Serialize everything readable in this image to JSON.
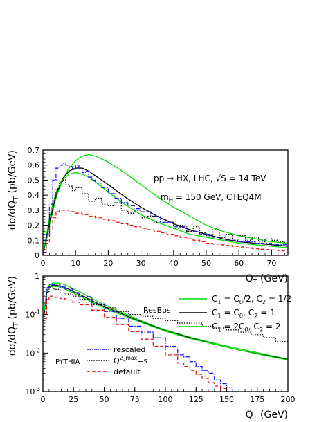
{
  "chart_data": [
    {
      "type": "line",
      "xlim": [
        0,
        75
      ],
      "ylim": [
        0,
        0.7
      ],
      "xticks": [
        0,
        10,
        20,
        30,
        40,
        50,
        60,
        70
      ],
      "yticks": [
        0,
        0.1,
        0.2,
        0.3,
        0.4,
        0.5,
        0.6,
        0.7
      ],
      "xtick_labels": [
        "0",
        "10",
        "20",
        "30",
        "40",
        "50",
        "60",
        "70"
      ],
      "ytick_labels": [
        "0",
        "0.1",
        "0.2",
        "0.3",
        "0.4",
        "0.5",
        "0.6",
        "0.7"
      ],
      "xlabel": "Q_T (GeV)",
      "ylabel": "dσ/dQ_T (pb/GeV)",
      "annotations": [
        "pp → HX, LHC, √S = 14 TeV",
        "m_H = 150 GeV, CTEQ4M"
      ],
      "series": [
        {
          "color": "#00dd00",
          "style": "solid",
          "x": [
            0,
            2,
            4,
            6,
            8,
            10,
            12,
            14,
            16,
            20,
            25,
            30,
            35,
            40,
            45,
            50,
            55,
            60,
            65,
            70,
            75
          ],
          "y": [
            0,
            0.2,
            0.38,
            0.5,
            0.58,
            0.63,
            0.66,
            0.67,
            0.66,
            0.62,
            0.55,
            0.47,
            0.39,
            0.32,
            0.26,
            0.2,
            0.16,
            0.13,
            0.11,
            0.09,
            0.08
          ]
        },
        {
          "color": "#000000",
          "style": "solid",
          "x": [
            0,
            2,
            4,
            6,
            8,
            10,
            12,
            14,
            16,
            20,
            25,
            30,
            35,
            40,
            45,
            50,
            55,
            60,
            65,
            70,
            75
          ],
          "y": [
            0,
            0.22,
            0.4,
            0.51,
            0.56,
            0.58,
            0.58,
            0.56,
            0.53,
            0.47,
            0.39,
            0.32,
            0.26,
            0.21,
            0.17,
            0.14,
            0.11,
            0.09,
            0.08,
            0.07,
            0.06
          ]
        },
        {
          "color": "#00dd00",
          "style": "solid",
          "x": [
            0,
            2,
            4,
            6,
            8,
            10,
            12,
            14,
            16,
            20,
            25,
            30,
            35,
            40,
            45,
            50,
            55,
            60,
            65,
            70,
            75
          ],
          "y": [
            0,
            0.25,
            0.42,
            0.5,
            0.54,
            0.55,
            0.54,
            0.52,
            0.49,
            0.42,
            0.34,
            0.27,
            0.22,
            0.18,
            0.14,
            0.12,
            0.1,
            0.08,
            0.07,
            0.06,
            0.05
          ]
        },
        {
          "color": "#1a1aee",
          "style": "dashdot",
          "x": [
            0,
            1,
            2,
            3,
            4,
            5,
            6,
            7,
            8,
            9,
            10,
            11,
            12,
            13,
            14,
            15,
            16,
            18,
            20,
            22,
            24,
            26,
            28,
            30,
            33,
            36,
            40,
            44,
            48,
            52,
            56,
            60,
            65,
            70,
            75
          ],
          "y": [
            0.02,
            0.14,
            0.34,
            0.5,
            0.58,
            0.6,
            0.61,
            0.6,
            0.59,
            0.57,
            0.6,
            0.58,
            0.55,
            0.56,
            0.52,
            0.5,
            0.48,
            0.45,
            0.41,
            0.38,
            0.35,
            0.33,
            0.31,
            0.29,
            0.26,
            0.22,
            0.19,
            0.16,
            0.14,
            0.12,
            0.1,
            0.09,
            0.08,
            0.07,
            0.06
          ]
        },
        {
          "color": "#000000",
          "style": "dotted",
          "x": [
            0,
            1,
            2,
            3,
            4,
            5,
            6,
            7,
            8,
            9,
            10,
            12,
            14,
            16,
            18,
            20,
            22,
            24,
            26,
            28,
            30,
            32,
            34,
            36,
            38,
            40,
            42,
            44,
            46,
            48,
            50,
            52,
            54,
            56,
            58,
            60,
            62,
            64,
            66,
            68,
            70,
            72,
            74
          ],
          "y": [
            0.02,
            0.12,
            0.27,
            0.38,
            0.44,
            0.49,
            0.5,
            0.47,
            0.46,
            0.43,
            0.45,
            0.41,
            0.36,
            0.38,
            0.34,
            0.33,
            0.35,
            0.3,
            0.28,
            0.3,
            0.25,
            0.26,
            0.22,
            0.24,
            0.22,
            0.18,
            0.2,
            0.16,
            0.19,
            0.15,
            0.13,
            0.17,
            0.12,
            0.14,
            0.1,
            0.13,
            0.1,
            0.12,
            0.09,
            0.11,
            0.1,
            0.09,
            0.08
          ]
        },
        {
          "color": "#ee1111",
          "style": "dashed",
          "x": [
            0,
            1,
            2,
            3,
            4,
            5,
            6,
            7,
            8,
            9,
            10,
            12,
            14,
            16,
            18,
            20,
            22,
            24,
            26,
            28,
            30,
            32,
            34,
            36,
            38,
            40,
            42,
            44,
            46,
            48,
            50,
            52,
            54,
            56,
            58,
            60,
            62,
            64,
            66,
            68,
            70,
            72,
            74
          ],
          "y": [
            0.02,
            0.08,
            0.18,
            0.25,
            0.29,
            0.3,
            0.3,
            0.3,
            0.29,
            0.29,
            0.28,
            0.27,
            0.26,
            0.25,
            0.24,
            0.23,
            0.22,
            0.21,
            0.2,
            0.19,
            0.18,
            0.17,
            0.16,
            0.15,
            0.14,
            0.13,
            0.12,
            0.11,
            0.1,
            0.09,
            0.08,
            0.075,
            0.07,
            0.065,
            0.06,
            0.055,
            0.05,
            0.045,
            0.04,
            0.038,
            0.035,
            0.03,
            0.028
          ]
        }
      ]
    },
    {
      "type": "line",
      "yscale": "log",
      "xlim": [
        0,
        200
      ],
      "ylim": [
        0.001,
        1
      ],
      "xticks": [
        0,
        25,
        50,
        75,
        100,
        125,
        150,
        175,
        200
      ],
      "xtick_labels": [
        "0",
        "25",
        "50",
        "75",
        "100",
        "125",
        "150",
        "175",
        "200"
      ],
      "yticks": [
        0.001,
        0.01,
        0.1,
        1
      ],
      "ytick_labels": [
        "10^-3",
        "10^-2",
        "10^-1",
        "1"
      ],
      "xlabel": "Q_T (GeV)",
      "ylabel": "dσ/dQ_T (pb/GeV)",
      "legend_resbos": {
        "title": "ResBos",
        "entries": [
          {
            "label": "C_1 = C_0/2, C_2 = 1/2",
            "color": "#00dd00",
            "style": "solid"
          },
          {
            "label": "C_1 = C_0,    C_2 = 1",
            "color": "#000000",
            "style": "solid"
          },
          {
            "label": "C_1 = 2C_0,   C_2 = 2",
            "color": "#00dd00",
            "style": "solid"
          }
        ]
      },
      "legend_pythia": {
        "title": "PYTHIA",
        "entries": [
          {
            "label": "rescaled",
            "color": "#1a1aee",
            "style": "dashdot"
          },
          {
            "label": "Q^2_max=s",
            "color": "#000000",
            "style": "dotted"
          },
          {
            "label": "default",
            "color": "#ee1111",
            "style": "dashed"
          }
        ]
      },
      "series": [
        {
          "color": "#00dd00",
          "style": "solid",
          "x": [
            1,
            3,
            5,
            8,
            12,
            16,
            20,
            30,
            40,
            50,
            60,
            70,
            80,
            90,
            100,
            120,
            140,
            160,
            180,
            200
          ],
          "y": [
            0.1,
            0.38,
            0.58,
            0.66,
            0.66,
            0.62,
            0.55,
            0.39,
            0.26,
            0.18,
            0.13,
            0.095,
            0.07,
            0.052,
            0.04,
            0.026,
            0.018,
            0.013,
            0.0095,
            0.007
          ]
        },
        {
          "color": "#000000",
          "style": "solid",
          "x": [
            1,
            3,
            5,
            8,
            12,
            16,
            20,
            30,
            40,
            50,
            60,
            70,
            80,
            90,
            100,
            120,
            140,
            160,
            180,
            200
          ],
          "y": [
            0.1,
            0.4,
            0.52,
            0.58,
            0.57,
            0.53,
            0.47,
            0.33,
            0.23,
            0.16,
            0.12,
            0.088,
            0.066,
            0.05,
            0.038,
            0.025,
            0.017,
            0.012,
            0.009,
            0.0068
          ]
        },
        {
          "color": "#00dd00",
          "style": "solid",
          "x": [
            1,
            3,
            5,
            8,
            12,
            16,
            20,
            30,
            40,
            50,
            60,
            70,
            80,
            90,
            100,
            120,
            140,
            160,
            180,
            200
          ],
          "y": [
            0.12,
            0.42,
            0.5,
            0.54,
            0.53,
            0.49,
            0.43,
            0.3,
            0.21,
            0.15,
            0.11,
            0.083,
            0.063,
            0.048,
            0.037,
            0.024,
            0.017,
            0.012,
            0.0088,
            0.0066
          ]
        },
        {
          "color": "#1a1aee",
          "style": "dashdot",
          "x": [
            1,
            3,
            5,
            8,
            10,
            14,
            18,
            24,
            30,
            40,
            50,
            60,
            70,
            80,
            90,
            100,
            110,
            115,
            120,
            125,
            130,
            135,
            140,
            145,
            150,
            155,
            160
          ],
          "y": [
            0.14,
            0.5,
            0.6,
            0.59,
            0.6,
            0.52,
            0.46,
            0.37,
            0.29,
            0.19,
            0.12,
            0.08,
            0.05,
            0.035,
            0.025,
            0.015,
            0.009,
            0.008,
            0.006,
            0.0045,
            0.0035,
            0.003,
            0.002,
            0.0016,
            0.0013,
            0.001,
            0.0009
          ]
        },
        {
          "color": "#000000",
          "style": "dotted",
          "x": [
            1,
            3,
            5,
            8,
            10,
            14,
            18,
            24,
            30,
            40,
            50,
            60,
            70,
            80,
            90,
            100,
            110,
            120,
            130,
            140,
            150,
            160,
            170,
            180,
            190,
            200
          ],
          "y": [
            0.12,
            0.38,
            0.49,
            0.46,
            0.45,
            0.36,
            0.34,
            0.3,
            0.25,
            0.18,
            0.15,
            0.12,
            0.1,
            0.09,
            0.08,
            0.07,
            0.06,
            0.06,
            0.05,
            0.045,
            0.04,
            0.035,
            0.03,
            0.025,
            0.02,
            0.02
          ]
        },
        {
          "color": "#ee1111",
          "style": "dashed",
          "x": [
            1,
            3,
            5,
            8,
            10,
            14,
            18,
            24,
            30,
            40,
            50,
            60,
            70,
            80,
            90,
            100,
            110,
            115,
            120,
            125,
            130,
            135,
            140,
            145,
            150,
            152
          ],
          "y": [
            0.08,
            0.25,
            0.3,
            0.29,
            0.28,
            0.26,
            0.24,
            0.21,
            0.18,
            0.13,
            0.085,
            0.055,
            0.036,
            0.023,
            0.015,
            0.009,
            0.0055,
            0.0045,
            0.0035,
            0.0028,
            0.0022,
            0.0017,
            0.0014,
            0.0012,
            0.001,
            0.001
          ]
        }
      ]
    }
  ]
}
